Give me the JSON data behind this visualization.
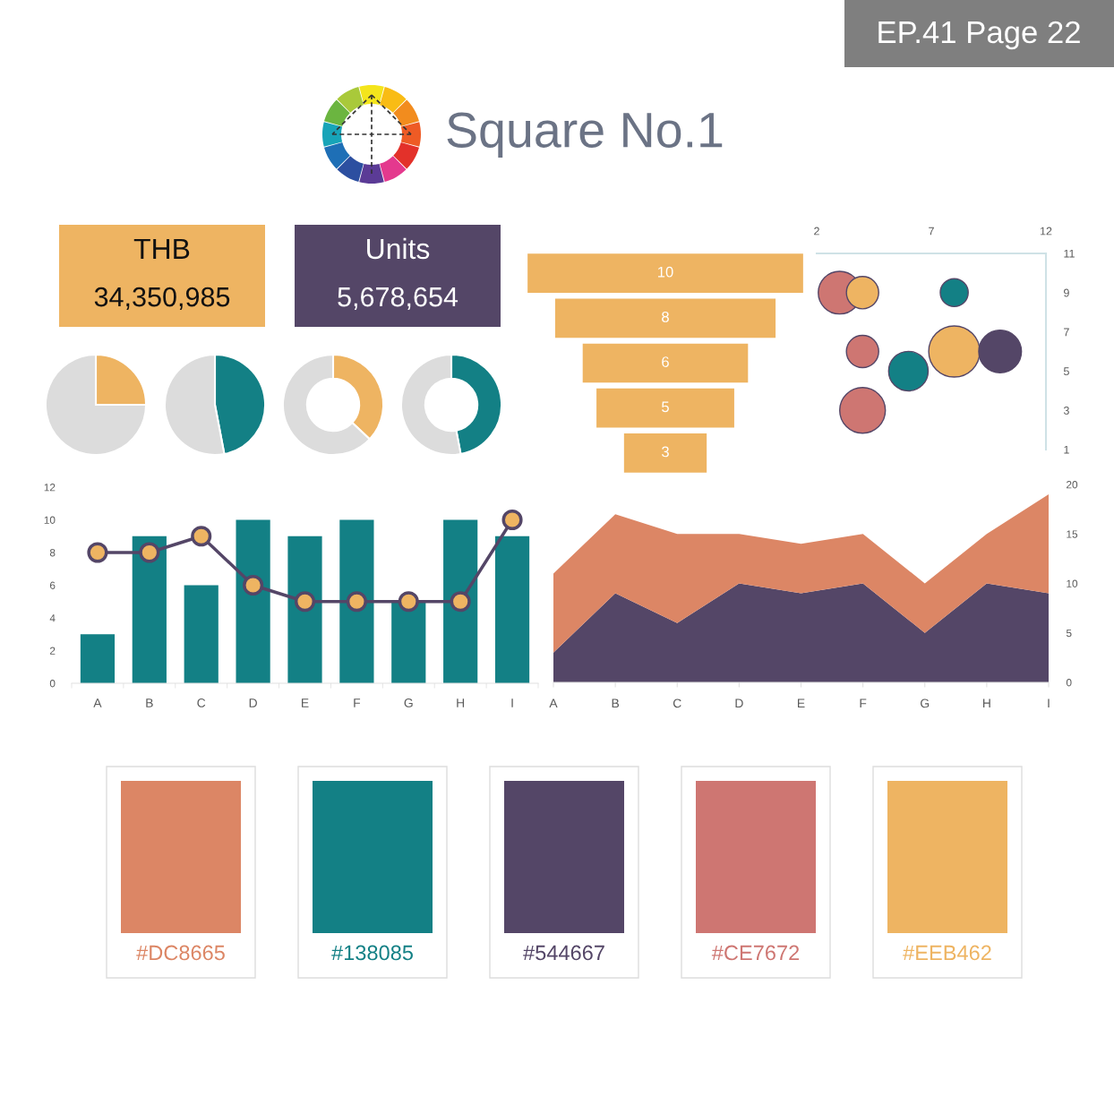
{
  "chart_data": [
    {
      "type": "other",
      "title": "Square No.1",
      "annotations": [
        "EP.41 Page 22"
      ]
    },
    {
      "type": "other",
      "title": "THB",
      "annotations": [
        "34,350,985"
      ],
      "color": "#EEB462"
    },
    {
      "type": "other",
      "title": "Units",
      "annotations": [
        "5,678,654"
      ],
      "color": "#544667"
    },
    {
      "type": "pie",
      "categories": [
        null,
        null
      ],
      "values": [
        25,
        75
      ],
      "colors": [
        "#EEB462",
        "#DCDCDC"
      ]
    },
    {
      "type": "pie",
      "categories": [
        null,
        null
      ],
      "values": [
        47,
        53
      ],
      "colors": [
        "#138085",
        "#DCDCDC"
      ]
    },
    {
      "type": "donut",
      "categories": [
        null,
        null
      ],
      "values": [
        37,
        63
      ],
      "colors": [
        "#EEB462",
        "#DCDCDC"
      ]
    },
    {
      "type": "donut",
      "categories": [
        null,
        null
      ],
      "values": [
        47,
        53
      ],
      "colors": [
        "#138085",
        "#DCDCDC"
      ]
    },
    {
      "type": "other",
      "values": [
        10,
        8,
        6,
        5,
        3
      ],
      "color": "#EEB462",
      "data_labels": true
    },
    {
      "type": "bubble",
      "x": [
        3,
        4,
        8,
        4,
        6,
        8,
        10,
        4
      ],
      "values": [
        9,
        9,
        9,
        6,
        5,
        6,
        6,
        3
      ],
      "sizes": [
        0.7,
        0.4,
        0.3,
        0.4,
        0.6,
        1,
        0.7,
        0.8
      ],
      "colors": [
        "#CE7672",
        "#EEB462",
        "#138085",
        "#CE7672",
        "#138085",
        "#EEB462",
        "#544667",
        "#CE7672"
      ],
      "xlim": [
        2,
        12
      ],
      "xticks": [
        2,
        7,
        12
      ],
      "ylim": [
        1,
        11
      ],
      "yticks": [
        1,
        3,
        5,
        7,
        9,
        11
      ]
    },
    {
      "type": "bar",
      "categories": [
        "A",
        "B",
        "C",
        "D",
        "E",
        "F",
        "G",
        "H",
        "I"
      ],
      "ylim": [
        0,
        12
      ],
      "yticks": [
        0,
        2,
        4,
        6,
        8,
        10,
        12
      ],
      "series": [
        {
          "type": "bar",
          "color": "#138085",
          "values": [
            3,
            9,
            6,
            10,
            9,
            10,
            5,
            10,
            9
          ]
        },
        {
          "type": "line",
          "color": "#544667",
          "marker": "circle",
          "colors": [
            "#EEB462",
            "#EEB462",
            "#EEB462",
            "#EEB462",
            "#EEB462",
            "#EEB462",
            "#EEB462",
            "#EEB462",
            "#EEB462"
          ],
          "values": [
            8,
            8,
            9,
            6,
            5,
            5,
            5,
            5,
            10
          ]
        }
      ]
    },
    {
      "type": "area",
      "categories": [
        "A",
        "B",
        "C",
        "D",
        "E",
        "F",
        "G",
        "H",
        "I"
      ],
      "stacked": true,
      "ylim": [
        0,
        20
      ],
      "yticks": [
        0,
        5,
        10,
        15,
        20
      ],
      "series": [
        {
          "color": "#544667",
          "values": [
            3,
            9,
            6,
            10,
            9,
            10,
            5,
            10,
            9
          ]
        },
        {
          "color": "#DC8665",
          "values": [
            8,
            8,
            9,
            5,
            5,
            5,
            5,
            5,
            10
          ]
        }
      ]
    },
    {
      "type": "other",
      "colors": [
        "#DC8665",
        "#138085",
        "#544667",
        "#CE7672",
        "#EEB462"
      ],
      "annotations": [
        "#DC8665",
        "#138085",
        "#544667",
        "#CE7672",
        "#EEB462"
      ]
    }
  ]
}
